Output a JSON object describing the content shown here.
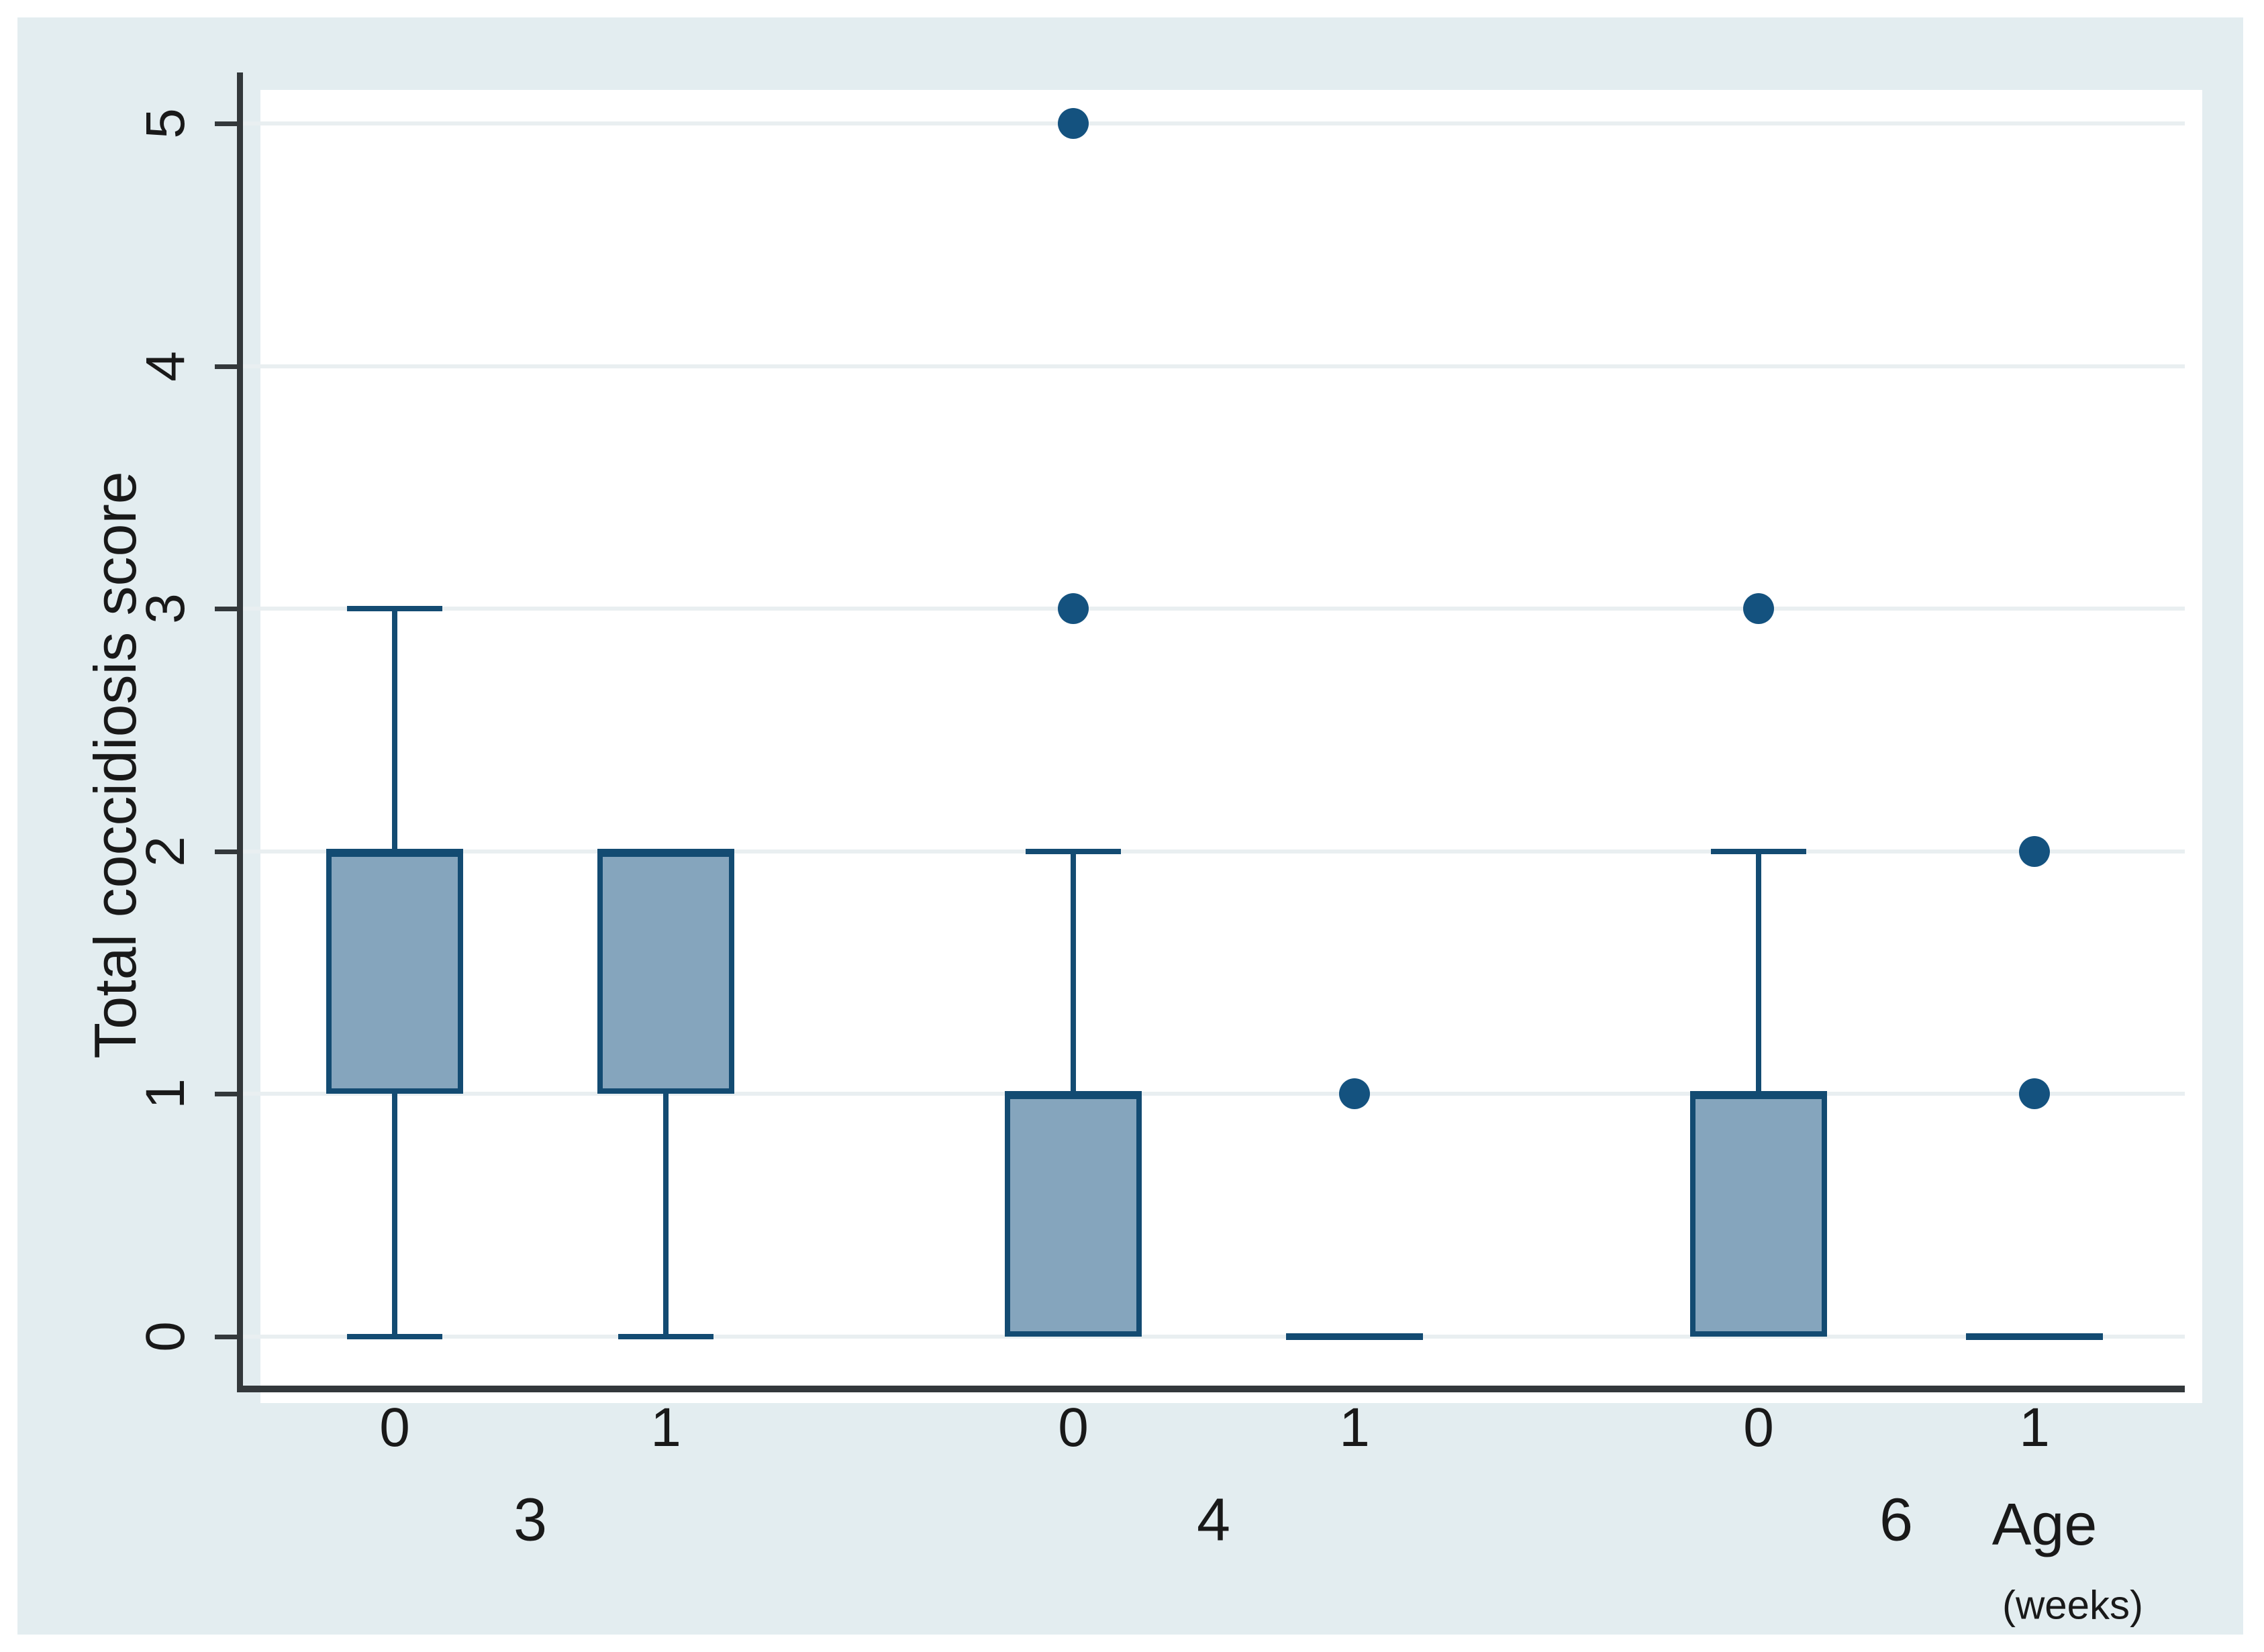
{
  "chart_data": {
    "type": "box",
    "title": "",
    "ylabel": "Total coccidiosis score",
    "xlabel": "Age",
    "xlabel_sub": "(weeks)",
    "y_ticks": [
      0,
      1,
      2,
      3,
      4,
      5
    ],
    "ylim": [
      -0.2,
      5.2
    ],
    "grid": "horizontal",
    "legend": "none",
    "groups": [
      {
        "age": "3",
        "boxes": [
          {
            "treatment": "0",
            "q1": 1,
            "median": 2,
            "q3": 2,
            "whisker_low": 0,
            "whisker_high": 3,
            "outliers": []
          },
          {
            "treatment": "1",
            "q1": 1,
            "median": 2,
            "q3": 2,
            "whisker_low": 0,
            "whisker_high": 2,
            "outliers": []
          }
        ]
      },
      {
        "age": "4",
        "boxes": [
          {
            "treatment": "0",
            "q1": 0,
            "median": 1,
            "q3": 1,
            "whisker_low": 0,
            "whisker_high": 2,
            "outliers": [
              3,
              5
            ]
          },
          {
            "treatment": "1",
            "q1": 0,
            "median": 0,
            "q3": 0,
            "whisker_low": 0,
            "whisker_high": 0,
            "outliers": [
              1
            ]
          }
        ]
      },
      {
        "age": "6",
        "boxes": [
          {
            "treatment": "0",
            "q1": 0,
            "median": 1,
            "q3": 1,
            "whisker_low": 0,
            "whisker_high": 2,
            "outliers": [
              3
            ]
          },
          {
            "treatment": "1",
            "q1": 0,
            "median": 0,
            "q3": 0,
            "whisker_low": 0,
            "whisker_high": 0,
            "outliers": [
              1,
              2
            ]
          }
        ]
      }
    ],
    "colors": {
      "canvas_bg": "#e3edf0",
      "plot_bg": "#ffffff",
      "gridline": "#e9eff1",
      "axis": "#33383b",
      "box_fill": "#85a5bd",
      "box_border": "#134b72",
      "outlier_dot": "#14527f",
      "text": "#191919"
    }
  }
}
